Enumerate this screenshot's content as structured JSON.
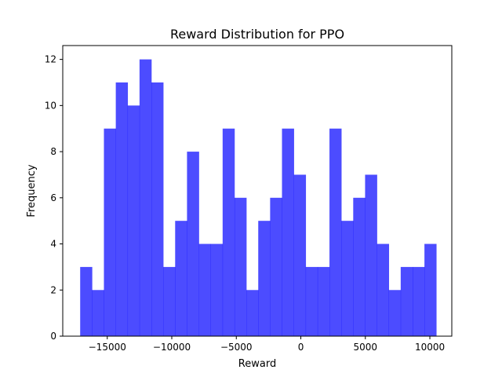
{
  "chart_data": {
    "type": "bar",
    "title": "Reward Distribution for PPO",
    "xlabel": "Reward",
    "ylabel": "Frequency",
    "bar_color": "#0000ff",
    "bar_opacity": 0.7,
    "bin_start": -17100,
    "bin_width": 920,
    "counts": [
      3,
      2,
      9,
      11,
      10,
      12,
      11,
      3,
      5,
      8,
      4,
      4,
      9,
      6,
      2,
      5,
      6,
      9,
      7,
      3,
      3,
      9,
      5,
      6,
      7,
      4,
      2,
      3,
      3,
      4
    ],
    "xlim": [
      -18450,
      11700
    ],
    "ylim": [
      0,
      12.6
    ],
    "xticks": [
      -15000,
      -10000,
      -5000,
      0,
      5000,
      10000
    ],
    "xtick_labels": [
      "−15000",
      "−10000",
      "−5000",
      "0",
      "5000",
      "10000"
    ],
    "yticks": [
      0,
      2,
      4,
      6,
      8,
      10,
      12
    ],
    "ytick_labels": [
      "0",
      "2",
      "4",
      "6",
      "8",
      "10",
      "12"
    ],
    "grid": false,
    "legend": "none"
  }
}
